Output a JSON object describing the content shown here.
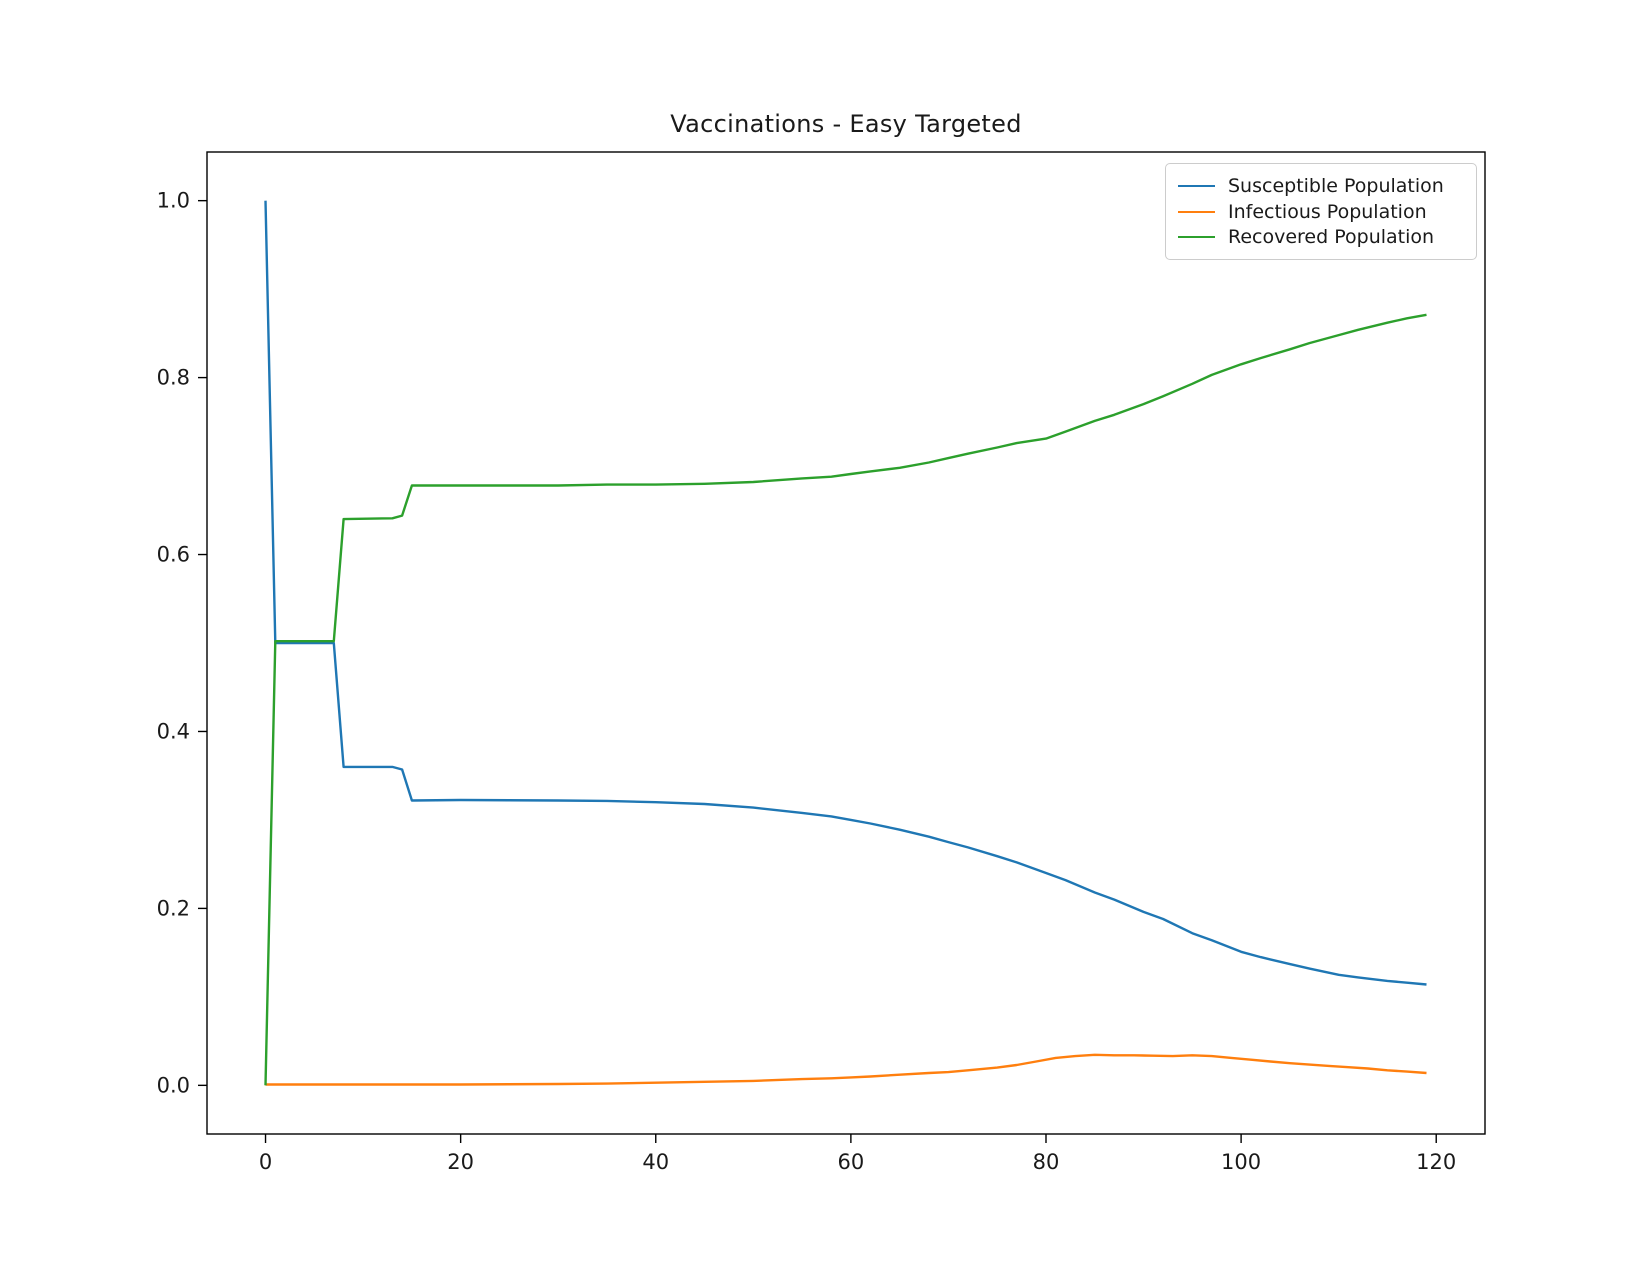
{
  "figure": {
    "background": "#ffffff",
    "text_color": "#1a1a1a",
    "spine_color": "#000000"
  },
  "chart_data": {
    "type": "line",
    "title": "Vaccinations - Easy Targeted",
    "xlabel": "",
    "ylabel": "",
    "xlim": [
      -6,
      125
    ],
    "ylim": [
      -0.055,
      1.055
    ],
    "x_ticks": [
      0,
      20,
      40,
      60,
      80,
      100,
      120
    ],
    "y_ticks": [
      0.0,
      0.2,
      0.4,
      0.6,
      0.8,
      1.0
    ],
    "grid": false,
    "legend_position": "upper right",
    "series": [
      {
        "name": "Susceptible Population",
        "color": "#1f77b4",
        "points": [
          [
            0,
            1.0
          ],
          [
            1,
            0.5
          ],
          [
            7,
            0.5
          ],
          [
            8,
            0.36
          ],
          [
            13,
            0.36
          ],
          [
            14,
            0.357
          ],
          [
            15,
            0.322
          ],
          [
            20,
            0.3225
          ],
          [
            30,
            0.322
          ],
          [
            35,
            0.3215
          ],
          [
            40,
            0.32
          ],
          [
            45,
            0.318
          ],
          [
            50,
            0.314
          ],
          [
            55,
            0.308
          ],
          [
            58,
            0.304
          ],
          [
            60,
            0.3
          ],
          [
            62,
            0.296
          ],
          [
            65,
            0.289
          ],
          [
            68,
            0.281
          ],
          [
            70,
            0.275
          ],
          [
            72,
            0.269
          ],
          [
            75,
            0.259
          ],
          [
            77,
            0.252
          ],
          [
            80,
            0.24
          ],
          [
            82,
            0.232
          ],
          [
            85,
            0.218
          ],
          [
            87,
            0.21
          ],
          [
            90,
            0.196
          ],
          [
            92,
            0.188
          ],
          [
            95,
            0.172
          ],
          [
            97,
            0.164
          ],
          [
            100,
            0.151
          ],
          [
            102,
            0.145
          ],
          [
            105,
            0.137
          ],
          [
            107,
            0.132
          ],
          [
            110,
            0.125
          ],
          [
            112,
            0.122
          ],
          [
            115,
            0.118
          ],
          [
            117,
            0.116
          ],
          [
            119,
            0.114
          ]
        ]
      },
      {
        "name": "Infectious Population",
        "color": "#ff7f0e",
        "points": [
          [
            0,
            0.001
          ],
          [
            10,
            0.001
          ],
          [
            20,
            0.001
          ],
          [
            30,
            0.0015
          ],
          [
            35,
            0.002
          ],
          [
            40,
            0.003
          ],
          [
            45,
            0.004
          ],
          [
            50,
            0.005
          ],
          [
            55,
            0.007
          ],
          [
            58,
            0.008
          ],
          [
            60,
            0.009
          ],
          [
            62,
            0.01
          ],
          [
            65,
            0.012
          ],
          [
            68,
            0.014
          ],
          [
            70,
            0.015
          ],
          [
            72,
            0.017
          ],
          [
            75,
            0.02
          ],
          [
            77,
            0.023
          ],
          [
            79,
            0.027
          ],
          [
            81,
            0.031
          ],
          [
            83,
            0.033
          ],
          [
            85,
            0.0345
          ],
          [
            87,
            0.034
          ],
          [
            89,
            0.034
          ],
          [
            91,
            0.0335
          ],
          [
            93,
            0.033
          ],
          [
            95,
            0.034
          ],
          [
            97,
            0.033
          ],
          [
            99,
            0.031
          ],
          [
            101,
            0.029
          ],
          [
            103,
            0.027
          ],
          [
            105,
            0.025
          ],
          [
            107,
            0.0235
          ],
          [
            109,
            0.022
          ],
          [
            111,
            0.0205
          ],
          [
            113,
            0.019
          ],
          [
            115,
            0.017
          ],
          [
            117,
            0.0155
          ],
          [
            119,
            0.014
          ]
        ]
      },
      {
        "name": "Recovered Population",
        "color": "#2ca02c",
        "points": [
          [
            0,
            0.0
          ],
          [
            1,
            0.502
          ],
          [
            7,
            0.502
          ],
          [
            8,
            0.64
          ],
          [
            13,
            0.641
          ],
          [
            14,
            0.644
          ],
          [
            15,
            0.678
          ],
          [
            20,
            0.678
          ],
          [
            30,
            0.678
          ],
          [
            35,
            0.679
          ],
          [
            40,
            0.679
          ],
          [
            45,
            0.68
          ],
          [
            50,
            0.682
          ],
          [
            55,
            0.686
          ],
          [
            58,
            0.688
          ],
          [
            60,
            0.691
          ],
          [
            62,
            0.694
          ],
          [
            65,
            0.698
          ],
          [
            68,
            0.704
          ],
          [
            70,
            0.709
          ],
          [
            72,
            0.714
          ],
          [
            75,
            0.721
          ],
          [
            77,
            0.726
          ],
          [
            80,
            0.731
          ],
          [
            82,
            0.739
          ],
          [
            85,
            0.751
          ],
          [
            87,
            0.758
          ],
          [
            90,
            0.77
          ],
          [
            92,
            0.779
          ],
          [
            95,
            0.793
          ],
          [
            97,
            0.803
          ],
          [
            100,
            0.815
          ],
          [
            102,
            0.822
          ],
          [
            105,
            0.832
          ],
          [
            107,
            0.839
          ],
          [
            110,
            0.848
          ],
          [
            112,
            0.854
          ],
          [
            115,
            0.862
          ],
          [
            117,
            0.867
          ],
          [
            119,
            0.871
          ]
        ]
      }
    ]
  }
}
